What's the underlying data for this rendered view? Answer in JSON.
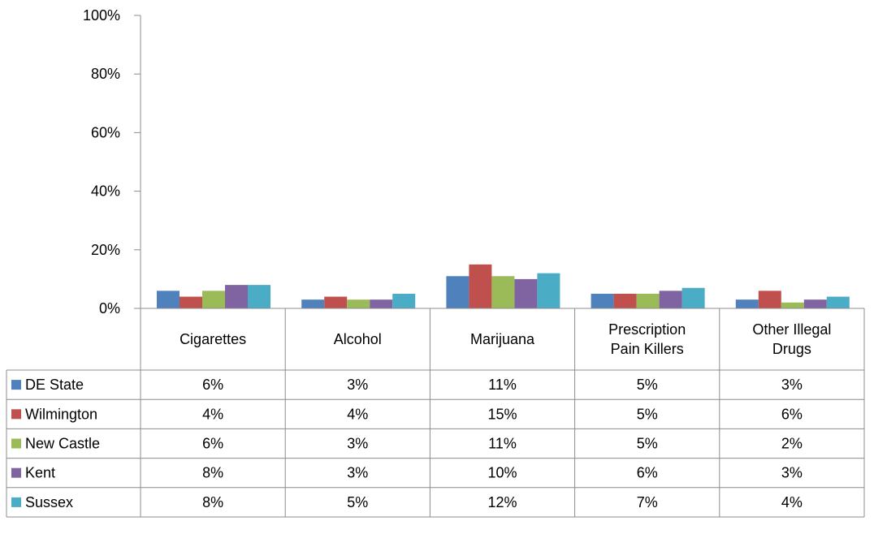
{
  "chart_data": {
    "type": "bar",
    "title": "",
    "xlabel": "",
    "ylabel": "",
    "ylim": [
      0,
      100
    ],
    "y_unit": "%",
    "y_ticks": [
      "0%",
      "20%",
      "40%",
      "60%",
      "80%",
      "100%"
    ],
    "grid": false,
    "legend": "data-table",
    "categories": [
      [
        "Cigarettes"
      ],
      [
        "Alcohol"
      ],
      [
        "Marijuana"
      ],
      [
        "Prescription",
        "Pain Killers"
      ],
      [
        "Other Illegal",
        "Drugs"
      ]
    ],
    "series": [
      {
        "name": "DE State",
        "color": "#4F81BD",
        "values": [
          6,
          3,
          11,
          5,
          3
        ],
        "labels": [
          "6%",
          "3%",
          "11%",
          "5%",
          "3%"
        ]
      },
      {
        "name": "Wilmington",
        "color": "#C0504D",
        "values": [
          4,
          4,
          15,
          5,
          6
        ],
        "labels": [
          "4%",
          "4%",
          "15%",
          "5%",
          "6%"
        ]
      },
      {
        "name": "New Castle",
        "color": "#9BBB59",
        "values": [
          6,
          3,
          11,
          5,
          2
        ],
        "labels": [
          "6%",
          "3%",
          "11%",
          "5%",
          "2%"
        ]
      },
      {
        "name": "Kent",
        "color": "#8064A2",
        "values": [
          8,
          3,
          10,
          6,
          3
        ],
        "labels": [
          "8%",
          "3%",
          "10%",
          "6%",
          "3%"
        ]
      },
      {
        "name": "Sussex",
        "color": "#4BACC6",
        "values": [
          8,
          5,
          12,
          7,
          4
        ],
        "labels": [
          "8%",
          "5%",
          "12%",
          "7%",
          "4%"
        ]
      }
    ]
  }
}
